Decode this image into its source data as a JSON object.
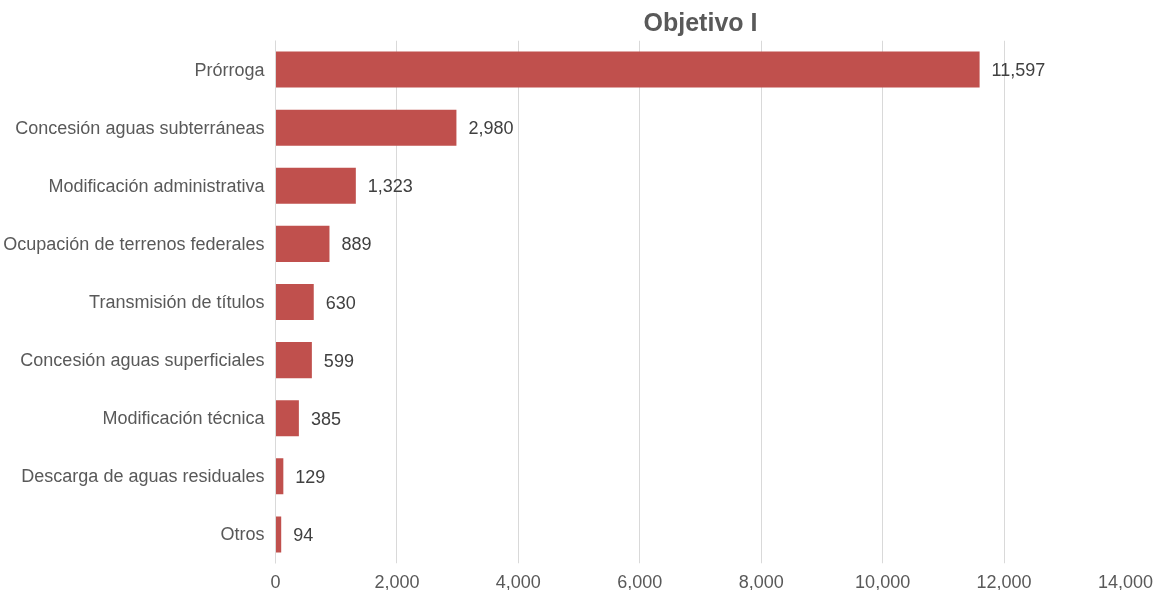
{
  "chart_data": {
    "type": "bar",
    "orientation": "horizontal",
    "title": "Objetivo I",
    "categories": [
      "Prórroga",
      "Concesión aguas subterráneas",
      "Modificación administrativa",
      "Ocupación de terrenos federales",
      "Transmisión de títulos",
      "Concesión aguas superficiales",
      "Modificación técnica",
      "Descarga de aguas residuales",
      "Otros"
    ],
    "values": [
      11597,
      2980,
      1323,
      889,
      630,
      599,
      385,
      129,
      94
    ],
    "value_labels": [
      "11,597",
      "2,980",
      "1,323",
      "889",
      "630",
      "599",
      "385",
      "129",
      "94"
    ],
    "color": "#c0504d",
    "grid": "x",
    "xlim": [
      0,
      14000
    ],
    "xticks": [
      0,
      {
        "value": 2000,
        "label": "2,000"
      },
      {
        "value": 4000,
        "label": "4,000"
      },
      {
        "value": 6000,
        "label": "6,000"
      },
      {
        "value": 8000,
        "label": "8,000"
      },
      {
        "value": 10000,
        "label": "10,000"
      },
      {
        "value": 12000,
        "label": "12,000"
      },
      {
        "value": 14000,
        "label": "14,000"
      }
    ]
  }
}
